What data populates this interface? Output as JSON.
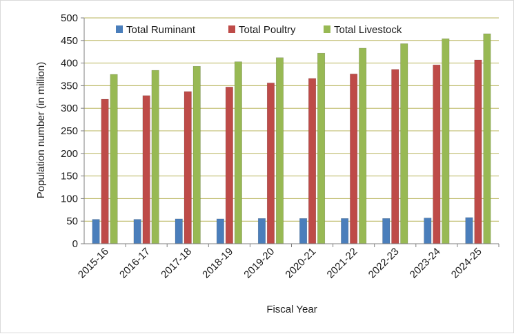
{
  "chart_data": {
    "type": "bar",
    "xlabel": "Fiscal Year",
    "ylabel": "Population number (in million)",
    "ylim": [
      0,
      500
    ],
    "ytick_step": 50,
    "grid": true,
    "legend_position": "top",
    "categories": [
      "2015-16",
      "2016-17",
      "2017-18",
      "2018-19",
      "2019-20",
      "2020-21",
      "2021-22",
      "2022-23",
      "2023-24",
      "2024-25"
    ],
    "series": [
      {
        "name": "Total  Ruminant",
        "color": "#4a7ebb",
        "values": [
          54,
          54,
          55,
          55,
          56,
          56,
          56,
          56,
          57,
          58
        ]
      },
      {
        "name": "Total Poultry",
        "color": "#be4b48",
        "values": [
          320,
          328,
          337,
          347,
          356,
          366,
          376,
          386,
          396,
          407
        ]
      },
      {
        "name": "Total Livestock",
        "color": "#98b954",
        "values": [
          375,
          384,
          393,
          403,
          412,
          422,
          433,
          443,
          454,
          465
        ]
      }
    ]
  }
}
